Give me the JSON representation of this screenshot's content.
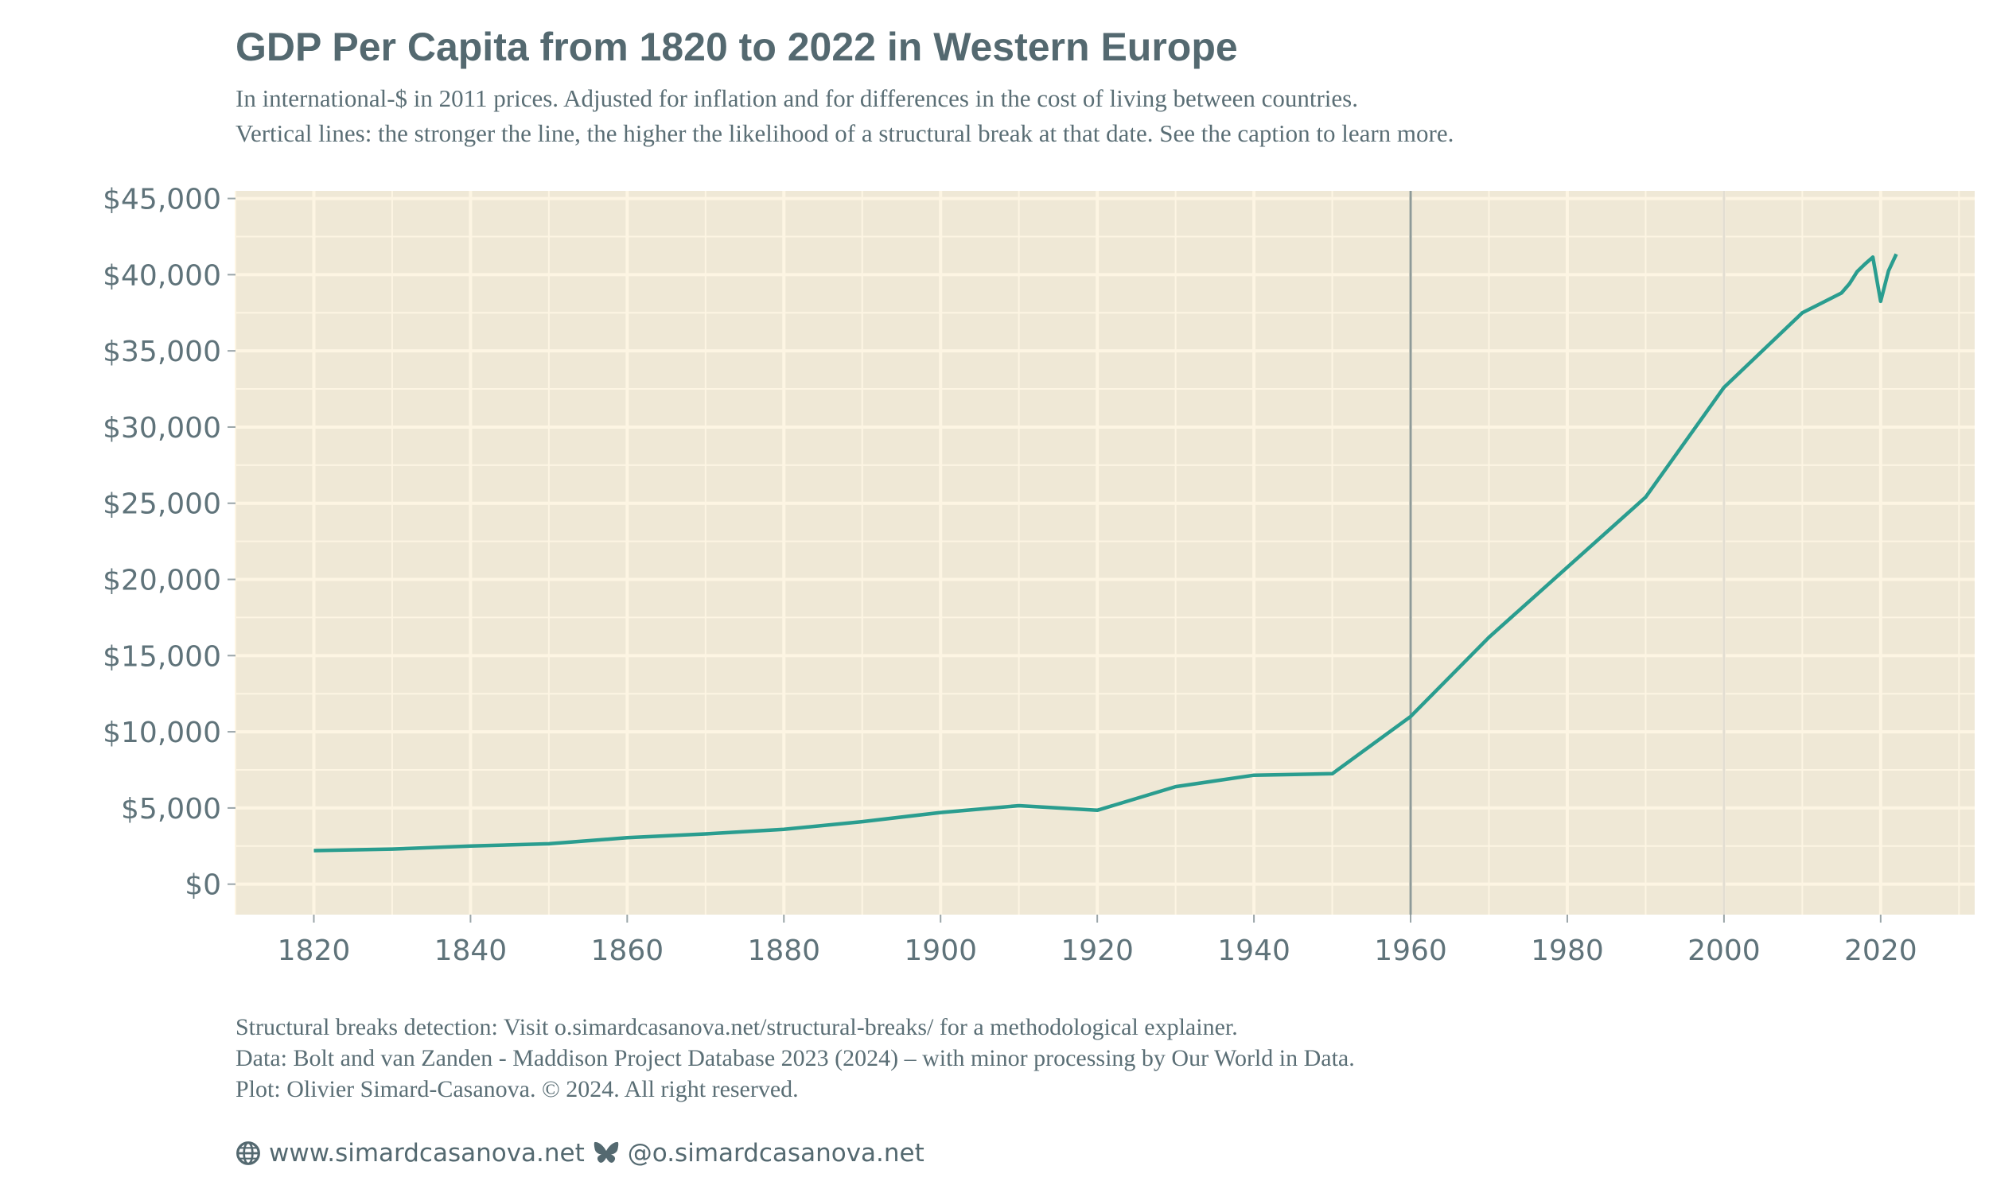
{
  "title": "GDP Per Capita from 1820 to 2022 in Western Europe",
  "subtitle": [
    "In international-$ in 2011 prices. Adjusted for inflation and for differences in the cost of living between countries.",
    "Vertical lines: the stronger the line, the higher the likelihood of a structural break at that date. See the caption to learn more."
  ],
  "caption": [
    "Structural breaks detection: Visit o.simardcasanova.net/structural-breaks/ for a methodological explainer.",
    "Data: Bolt and van Zanden - Maddison Project Database 2023 (2024) – with minor processing by Our World in Data.",
    "Plot: Olivier Simard-Casanova. © 2024.  All right reserved."
  ],
  "links": {
    "website": "www.simardcasanova.net",
    "website_icon": "globe-icon",
    "bluesky": "@o.simardcasanova.net",
    "bluesky_icon": "butterfly-icon"
  },
  "colors": {
    "line": "#2a9d8f",
    "panel": "#efe8d6",
    "grid": "#fdf5e3",
    "break_strong": "#8e9a98",
    "break_weak": "#e2ddd2"
  },
  "chart_data": {
    "type": "line",
    "title": "GDP Per Capita from 1820 to 2022 in Western Europe",
    "xlim": [
      1810,
      2032
    ],
    "ylim": [
      -2000,
      45500
    ],
    "grid": true,
    "x_ticks": [
      1820,
      1840,
      1860,
      1880,
      1900,
      1920,
      1940,
      1960,
      1980,
      2000,
      2020
    ],
    "y_ticks": [
      0,
      5000,
      10000,
      15000,
      20000,
      25000,
      30000,
      35000,
      40000,
      45000
    ],
    "y_tick_labels": [
      "$0",
      "$5,000",
      "$10,000",
      "$15,000",
      "$20,000",
      "$25,000",
      "$30,000",
      "$35,000",
      "$40,000",
      "$45,000"
    ],
    "structural_breaks": [
      {
        "year": 1960,
        "strength": 0.9
      },
      {
        "year": 2000,
        "strength": 0.15
      }
    ],
    "x": [
      1820,
      1830,
      1840,
      1850,
      1860,
      1870,
      1880,
      1890,
      1900,
      1910,
      1920,
      1930,
      1940,
      1950,
      1960,
      1970,
      1980,
      1990,
      2000,
      2010,
      2015,
      2016,
      2017,
      2018,
      2019,
      2020,
      2021,
      2022
    ],
    "values": [
      2200,
      2300,
      2500,
      2650,
      3050,
      3300,
      3600,
      4100,
      4700,
      5150,
      4850,
      6400,
      7150,
      7250,
      11000,
      16200,
      20800,
      25400,
      32600,
      37500,
      38800,
      39400,
      40200,
      40700,
      41150,
      38250,
      40250,
      41350
    ]
  }
}
